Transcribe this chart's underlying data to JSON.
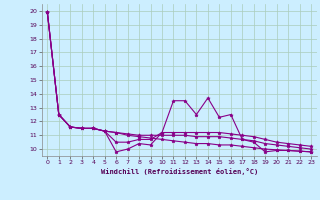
{
  "xlabel": "Windchill (Refroidissement éolien,°C)",
  "background_color": "#cceeff",
  "grid_color": "#aaccbb",
  "line_color": "#880088",
  "xlim": [
    -0.5,
    23.5
  ],
  "ylim": [
    9.5,
    20.5
  ],
  "yticks": [
    10,
    11,
    12,
    13,
    14,
    15,
    16,
    17,
    18,
    19,
    20
  ],
  "xticks": [
    0,
    1,
    2,
    3,
    4,
    5,
    6,
    7,
    8,
    9,
    10,
    11,
    12,
    13,
    14,
    15,
    16,
    17,
    18,
    19,
    20,
    21,
    22,
    23
  ],
  "series": [
    [
      19.9,
      12.5,
      11.6,
      11.5,
      11.5,
      11.3,
      9.8,
      10.0,
      10.4,
      10.3,
      11.2,
      13.5,
      13.5,
      12.5,
      13.7,
      12.3,
      12.5,
      10.7,
      10.5,
      9.8,
      9.9,
      9.9,
      9.85,
      9.8
    ],
    [
      19.9,
      12.5,
      11.6,
      11.5,
      11.5,
      11.3,
      10.5,
      10.5,
      10.7,
      10.7,
      11.2,
      11.2,
      11.2,
      11.2,
      11.2,
      11.2,
      11.1,
      11.0,
      10.9,
      10.7,
      10.5,
      10.4,
      10.3,
      10.2
    ],
    [
      19.9,
      12.5,
      11.6,
      11.5,
      11.5,
      11.3,
      11.2,
      11.1,
      11.0,
      11.0,
      11.0,
      11.0,
      11.0,
      10.9,
      10.9,
      10.9,
      10.8,
      10.7,
      10.6,
      10.4,
      10.3,
      10.2,
      10.1,
      10.0
    ],
    [
      19.9,
      12.5,
      11.6,
      11.5,
      11.5,
      11.3,
      11.2,
      11.0,
      10.9,
      10.8,
      10.7,
      10.6,
      10.5,
      10.4,
      10.4,
      10.3,
      10.3,
      10.2,
      10.1,
      10.0,
      9.95,
      9.9,
      9.85,
      9.8
    ]
  ]
}
